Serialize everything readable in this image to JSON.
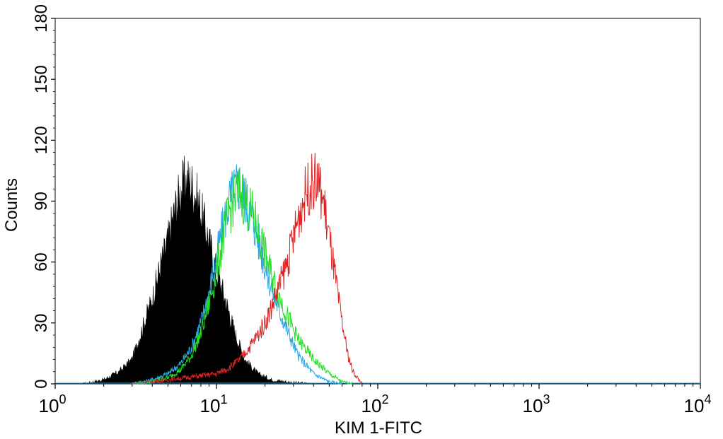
{
  "chart_data": {
    "type": "area",
    "title": "",
    "xlabel": "KIM 1-FITC",
    "ylabel": "Counts",
    "x_scale": "log",
    "xlim": [
      1,
      10000
    ],
    "ylim": [
      0,
      180
    ],
    "x_ticks": [
      {
        "value": 1,
        "base": "10",
        "exp": "0"
      },
      {
        "value": 10,
        "base": "10",
        "exp": "1"
      },
      {
        "value": 100,
        "base": "10",
        "exp": "2"
      },
      {
        "value": 1000,
        "base": "10",
        "exp": "3"
      },
      {
        "value": 10000,
        "base": "10",
        "exp": "4"
      }
    ],
    "y_ticks": [
      "0",
      "30",
      "60",
      "90",
      "120",
      "150",
      "180"
    ],
    "grid": false,
    "legend": "none",
    "series": [
      {
        "style": "filled",
        "color": "#000000",
        "x": [
          1.5,
          2,
          2.5,
          3,
          3.5,
          4,
          4.5,
          5,
          5.5,
          6,
          6.5,
          7,
          7.5,
          8,
          9,
          10,
          11,
          12,
          13,
          15,
          18,
          22,
          30,
          40
        ],
        "y": [
          0,
          2,
          6,
          12,
          28,
          42,
          58,
          70,
          85,
          95,
          100,
          98,
          92,
          85,
          70,
          55,
          45,
          35,
          25,
          12,
          5,
          2,
          0.5,
          0
        ]
      },
      {
        "style": "line",
        "color": "#2aa8e6",
        "x": [
          3,
          4,
          5,
          6,
          7,
          8,
          9,
          10,
          11,
          12,
          13,
          14,
          15,
          17,
          19,
          21,
          24,
          28,
          32,
          40,
          50,
          60
        ],
        "y": [
          0,
          2,
          5,
          10,
          18,
          30,
          45,
          62,
          78,
          90,
          96,
          98,
          92,
          80,
          65,
          52,
          38,
          25,
          14,
          5,
          1,
          0
        ]
      },
      {
        "style": "line",
        "color": "#22dd22",
        "x": [
          3,
          4,
          5,
          6,
          7,
          8,
          9,
          10,
          11,
          12,
          13,
          14,
          15,
          17,
          19,
          21,
          24,
          28,
          32,
          40,
          50,
          60,
          70
        ],
        "y": [
          0,
          1,
          3,
          7,
          14,
          25,
          40,
          55,
          72,
          85,
          92,
          95,
          90,
          82,
          70,
          58,
          45,
          32,
          22,
          12,
          5,
          1,
          0
        ]
      },
      {
        "style": "line",
        "color": "#dd2222",
        "x": [
          3,
          5,
          8,
          10,
          12,
          14,
          16,
          18,
          20,
          22,
          25,
          28,
          30,
          33,
          36,
          40,
          43,
          46,
          50,
          55,
          60,
          65,
          70,
          80
        ],
        "y": [
          0,
          2,
          4,
          5,
          8,
          12,
          18,
          24,
          30,
          38,
          50,
          62,
          72,
          85,
          95,
          100,
          98,
          90,
          72,
          50,
          30,
          15,
          6,
          0
        ]
      }
    ]
  }
}
